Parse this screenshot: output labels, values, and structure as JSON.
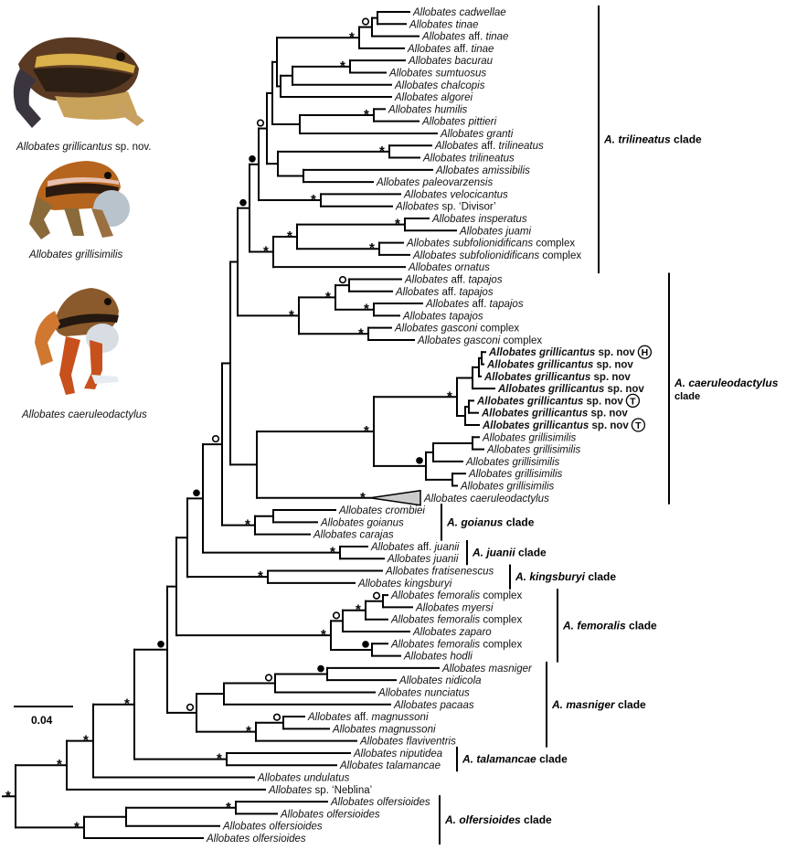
{
  "photos": [
    {
      "genus_species": "Allobates grillicantus",
      "suffix": "sp. nov."
    },
    {
      "genus_species": "Allobates grillisimilis",
      "suffix": ""
    },
    {
      "genus_species": "Allobates caeruleodactylus",
      "suffix": ""
    }
  ],
  "scale_bar": {
    "label": "0.04"
  },
  "support_symbols": {
    "star": "*"
  },
  "colors": {
    "branch": "#000000",
    "collapsed_clade_fill": "#cccccc"
  },
  "tips": [
    {
      "g": "Allobates",
      "q": "",
      "s": "cadwellae",
      "p": ""
    },
    {
      "g": "Allobates",
      "q": "",
      "s": "tinae",
      "p": ""
    },
    {
      "g": "Allobates",
      "q": "aff.",
      "s": "tinae",
      "p": ""
    },
    {
      "g": "Allobates",
      "q": "aff.",
      "s": "tinae",
      "p": ""
    },
    {
      "g": "Allobates",
      "q": "",
      "s": "bacurau",
      "p": ""
    },
    {
      "g": "Allobates",
      "q": "",
      "s": "sumtuosus",
      "p": ""
    },
    {
      "g": "Allobates",
      "q": "",
      "s": "chalcopis",
      "p": ""
    },
    {
      "g": "Allobates",
      "q": "",
      "s": "algorei",
      "p": ""
    },
    {
      "g": "Allobates",
      "q": "",
      "s": "humilis",
      "p": ""
    },
    {
      "g": "Allobates",
      "q": "",
      "s": "pittieri",
      "p": ""
    },
    {
      "g": "Allobates",
      "q": "",
      "s": "granti",
      "p": ""
    },
    {
      "g": "Allobates",
      "q": "aff.",
      "s": "trilineatus",
      "p": ""
    },
    {
      "g": "Allobates",
      "q": "",
      "s": "trilineatus",
      "p": ""
    },
    {
      "g": "Allobates",
      "q": "",
      "s": "amissibilis",
      "p": ""
    },
    {
      "g": "Allobates",
      "q": "",
      "s": "paleovarzensis",
      "p": ""
    },
    {
      "g": "Allobates",
      "q": "",
      "s": "velocicantus",
      "p": ""
    },
    {
      "g": "Allobates",
      "q": "sp. ‘Divisor’",
      "s": "",
      "p": ""
    },
    {
      "g": "Allobates",
      "q": "",
      "s": "insperatus",
      "p": ""
    },
    {
      "g": "Allobates",
      "q": "",
      "s": "juami",
      "p": ""
    },
    {
      "g": "Allobates",
      "q": "",
      "s": "subfolionidificans",
      "p": "complex"
    },
    {
      "g": "Allobates",
      "q": "",
      "s": "subfolionidificans",
      "p": "complex"
    },
    {
      "g": "Allobates",
      "q": "",
      "s": "ornatus",
      "p": ""
    },
    {
      "g": "Allobates",
      "q": "aff.",
      "s": "tapajos",
      "p": ""
    },
    {
      "g": "Allobates",
      "q": "aff.",
      "s": "tapajos",
      "p": ""
    },
    {
      "g": "Allobates",
      "q": "aff.",
      "s": "tapajos",
      "p": ""
    },
    {
      "g": "Allobates",
      "q": "",
      "s": "tapajos",
      "p": ""
    },
    {
      "g": "Allobates",
      "q": "",
      "s": "gasconi",
      "p": "complex"
    },
    {
      "g": "Allobates",
      "q": "",
      "s": "gasconi",
      "p": "complex"
    },
    {
      "g": "Allobates",
      "q": "",
      "s": "grillicantus",
      "p": "sp. nov",
      "bold": true,
      "badge": "H"
    },
    {
      "g": "Allobates",
      "q": "",
      "s": "grillicantus",
      "p": "sp. nov",
      "bold": true
    },
    {
      "g": "Allobates",
      "q": "",
      "s": "grillicantus",
      "p": "sp. nov",
      "bold": true
    },
    {
      "g": "Allobates",
      "q": "",
      "s": "grillicantus",
      "p": "sp. nov",
      "bold": true
    },
    {
      "g": "Allobates",
      "q": "",
      "s": "grillicantus",
      "p": "sp. nov",
      "bold": true,
      "badge": "T"
    },
    {
      "g": "Allobates",
      "q": "",
      "s": "grillicantus",
      "p": "sp. nov",
      "bold": true
    },
    {
      "g": "Allobates",
      "q": "",
      "s": "grillicantus",
      "p": "sp. nov",
      "bold": true,
      "badge": "T"
    },
    {
      "g": "Allobates",
      "q": "",
      "s": "grillisimilis",
      "p": ""
    },
    {
      "g": "Allobates",
      "q": "",
      "s": "grillisimilis",
      "p": ""
    },
    {
      "g": "Allobates",
      "q": "",
      "s": "grillisimilis",
      "p": ""
    },
    {
      "g": "Allobates",
      "q": "",
      "s": "grillisimilis",
      "p": ""
    },
    {
      "g": "Allobates",
      "q": "",
      "s": "grillisimilis",
      "p": ""
    },
    {
      "g": "Allobates",
      "q": "",
      "s": "caeruleodactylus",
      "p": ""
    },
    {
      "g": "Allobates",
      "q": "",
      "s": "crombiei",
      "p": ""
    },
    {
      "g": "Allobates",
      "q": "",
      "s": "goianus",
      "p": ""
    },
    {
      "g": "Allobates",
      "q": "",
      "s": "carajas",
      "p": ""
    },
    {
      "g": "Allobates",
      "q": "aff.",
      "s": "juanii",
      "p": ""
    },
    {
      "g": "Allobates",
      "q": "",
      "s": "juanii",
      "p": ""
    },
    {
      "g": "Allobates",
      "q": "",
      "s": "fratisenescus",
      "p": ""
    },
    {
      "g": "Allobates",
      "q": "",
      "s": "kingsburyi",
      "p": ""
    },
    {
      "g": "Allobates",
      "q": "",
      "s": "femoralis",
      "p": "complex"
    },
    {
      "g": "Allobates",
      "q": "",
      "s": "myersi",
      "p": ""
    },
    {
      "g": "Allobates",
      "q": "",
      "s": "femoralis",
      "p": "complex"
    },
    {
      "g": "Allobates",
      "q": "",
      "s": "zaparo",
      "p": ""
    },
    {
      "g": "Allobates",
      "q": "",
      "s": "femoralis",
      "p": "complex"
    },
    {
      "g": "Allobates",
      "q": "",
      "s": "hodli",
      "p": ""
    },
    {
      "g": "Allobates",
      "q": "",
      "s": "masniger",
      "p": ""
    },
    {
      "g": "Allobates",
      "q": "",
      "s": "nidicola",
      "p": ""
    },
    {
      "g": "Allobates",
      "q": "",
      "s": "nunciatus",
      "p": ""
    },
    {
      "g": "Allobates",
      "q": "",
      "s": "pacaas",
      "p": ""
    },
    {
      "g": "Allobates",
      "q": "aff.",
      "s": "magnussoni",
      "p": ""
    },
    {
      "g": "Allobates",
      "q": "",
      "s": "magnussoni",
      "p": ""
    },
    {
      "g": "Allobates",
      "q": "",
      "s": "flaviventris",
      "p": ""
    },
    {
      "g": "Allobates",
      "q": "",
      "s": "niputidea",
      "p": ""
    },
    {
      "g": "Allobates",
      "q": "",
      "s": "talamancae",
      "p": ""
    },
    {
      "g": "Allobates",
      "q": "",
      "s": "undulatus",
      "p": ""
    },
    {
      "g": "Allobates",
      "q": "sp. ‘Neblina’",
      "s": "",
      "p": ""
    },
    {
      "g": "Allobates",
      "q": "",
      "s": "olfersioides",
      "p": ""
    },
    {
      "g": "Allobates",
      "q": "",
      "s": "olfersioides",
      "p": ""
    },
    {
      "g": "Allobates",
      "q": "",
      "s": "olfersioides",
      "p": ""
    },
    {
      "g": "Allobates",
      "q": "",
      "s": "olfersioides",
      "p": ""
    }
  ],
  "clades": [
    {
      "abbr": "A. trilineatus",
      "word": "clade"
    },
    {
      "abbr": "A. caeruleodactylus",
      "word": "clade"
    },
    {
      "abbr": "A. goianus",
      "word": "clade"
    },
    {
      "abbr": "A. juanii",
      "word": "clade"
    },
    {
      "abbr": "A. kingsburyi",
      "word": "clade"
    },
    {
      "abbr": "A. femoralis",
      "word": "clade"
    },
    {
      "abbr": "A. masniger",
      "word": "clade"
    },
    {
      "abbr": "A. talamancae",
      "word": "clade"
    },
    {
      "abbr": "A. olfersioides",
      "word": "clade"
    }
  ]
}
